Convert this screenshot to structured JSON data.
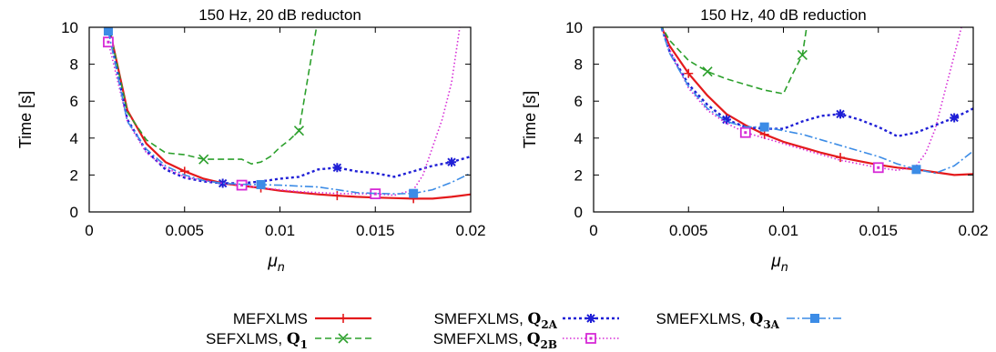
{
  "colors": {
    "MEFXLMS": "#e41a1c",
    "SEFXLMS_Q1": "#2ca02c",
    "SMEFXLMS_Q2A": "#1f1fd6",
    "SMEFXLMS_Q2B": "#d62ad6",
    "SMEFXLMS_Q3A": "#3c8ce6",
    "axis": "#000000"
  },
  "chart_data": [
    {
      "type": "line",
      "title": "150 Hz, 20 dB reducton",
      "xlabel": "μ",
      "xlabel_sub": "n",
      "ylabel": "Time [s]",
      "xlim": [
        0,
        0.02
      ],
      "ylim": [
        0,
        10
      ],
      "xticks": [
        0,
        0.005,
        0.01,
        0.015,
        0.02
      ],
      "xtick_labels": [
        "0",
        "0.005",
        "0.01",
        "0.015",
        "0.02"
      ],
      "yticks": [
        0,
        2,
        4,
        6,
        8,
        10
      ],
      "ytick_labels": [
        "0",
        "2",
        "4",
        "6",
        "8",
        "10"
      ],
      "series": [
        {
          "key": "MEFXLMS",
          "x": [
            0.001,
            0.002,
            0.003,
            0.004,
            0.005,
            0.006,
            0.007,
            0.008,
            0.009,
            0.01,
            0.011,
            0.012,
            0.013,
            0.014,
            0.015,
            0.016,
            0.017,
            0.018,
            0.019,
            0.02
          ],
          "y": [
            10.2,
            5.5,
            3.7,
            2.7,
            2.2,
            1.8,
            1.55,
            1.42,
            1.3,
            1.15,
            1.05,
            0.95,
            0.88,
            0.82,
            0.78,
            0.75,
            0.72,
            0.72,
            0.82,
            0.95
          ],
          "markers": [
            0.005,
            0.009,
            0.013,
            0.017
          ]
        },
        {
          "key": "SEFXLMS_Q1",
          "x": [
            0.001,
            0.002,
            0.003,
            0.004,
            0.005,
            0.006,
            0.007,
            0.008,
            0.0085,
            0.009,
            0.0095,
            0.01,
            0.0105,
            0.011,
            0.0115,
            0.012
          ],
          "y": [
            10.2,
            5.4,
            3.9,
            3.2,
            3.1,
            2.85,
            2.85,
            2.85,
            2.6,
            2.7,
            3.0,
            3.5,
            3.9,
            4.4,
            7.5,
            10.5
          ],
          "markers": [
            0.006,
            0.011
          ]
        },
        {
          "key": "SMEFXLMS_Q2A",
          "x": [
            0.001,
            0.002,
            0.003,
            0.004,
            0.005,
            0.006,
            0.007,
            0.008,
            0.009,
            0.01,
            0.011,
            0.012,
            0.013,
            0.014,
            0.015,
            0.016,
            0.017,
            0.018,
            0.019,
            0.02
          ],
          "y": [
            9.9,
            5.0,
            3.3,
            2.3,
            1.85,
            1.65,
            1.55,
            1.55,
            1.65,
            1.8,
            1.9,
            2.3,
            2.4,
            2.2,
            2.1,
            1.9,
            2.2,
            2.5,
            2.7,
            3.0
          ],
          "markers": [
            0.007,
            0.013,
            0.019
          ]
        },
        {
          "key": "SMEFXLMS_Q2B",
          "x": [
            0.001,
            0.002,
            0.003,
            0.004,
            0.005,
            0.006,
            0.007,
            0.008,
            0.009,
            0.01,
            0.011,
            0.012,
            0.013,
            0.014,
            0.015,
            0.016,
            0.017,
            0.0175,
            0.018,
            0.0185,
            0.019,
            0.0195
          ],
          "y": [
            9.2,
            4.9,
            3.2,
            2.4,
            1.9,
            1.7,
            1.55,
            1.45,
            1.3,
            1.2,
            1.1,
            1.05,
            1.0,
            0.98,
            0.98,
            0.9,
            1.2,
            2.0,
            3.5,
            5.0,
            7.0,
            10.5
          ],
          "markers": [
            0.001,
            0.008,
            0.015
          ]
        },
        {
          "key": "SMEFXLMS_Q3A",
          "x": [
            0.001,
            0.002,
            0.003,
            0.004,
            0.005,
            0.006,
            0.007,
            0.008,
            0.009,
            0.01,
            0.011,
            0.012,
            0.013,
            0.014,
            0.015,
            0.016,
            0.017,
            0.018,
            0.019,
            0.02
          ],
          "y": [
            9.8,
            4.9,
            3.4,
            2.5,
            2.0,
            1.7,
            1.55,
            1.5,
            1.48,
            1.45,
            1.4,
            1.35,
            1.2,
            1.05,
            1.0,
            0.98,
            1.0,
            1.2,
            1.6,
            2.1
          ],
          "markers": [
            0.001,
            0.009,
            0.017
          ]
        }
      ]
    },
    {
      "type": "line",
      "title": "150 Hz, 40 dB reduction",
      "xlabel": "μ",
      "xlabel_sub": "n",
      "ylabel": "Time [s]",
      "xlim": [
        0,
        0.02
      ],
      "ylim": [
        0,
        10
      ],
      "xticks": [
        0,
        0.005,
        0.01,
        0.015,
        0.02
      ],
      "xtick_labels": [
        "0",
        "0.005",
        "0.01",
        "0.015",
        "0.02"
      ],
      "yticks": [
        0,
        2,
        4,
        6,
        8,
        10
      ],
      "ytick_labels": [
        "0",
        "2",
        "4",
        "6",
        "8",
        "10"
      ],
      "series": [
        {
          "key": "MEFXLMS",
          "x": [
            0.0035,
            0.004,
            0.005,
            0.006,
            0.007,
            0.008,
            0.009,
            0.01,
            0.011,
            0.012,
            0.013,
            0.014,
            0.015,
            0.016,
            0.017,
            0.018,
            0.019,
            0.02
          ],
          "y": [
            10.2,
            9.0,
            7.5,
            6.3,
            5.3,
            4.7,
            4.2,
            3.8,
            3.5,
            3.2,
            2.95,
            2.75,
            2.55,
            2.4,
            2.3,
            2.15,
            2.0,
            2.05
          ],
          "markers": [
            0.005,
            0.009,
            0.013
          ]
        },
        {
          "key": "SEFXLMS_Q1",
          "x": [
            0.0035,
            0.004,
            0.005,
            0.006,
            0.007,
            0.008,
            0.009,
            0.01,
            0.0105,
            0.011,
            0.0113
          ],
          "y": [
            10.2,
            9.3,
            8.2,
            7.6,
            7.2,
            6.9,
            6.6,
            6.4,
            7.5,
            8.5,
            10.5
          ],
          "markers": [
            0.006,
            0.011
          ]
        },
        {
          "key": "SMEFXLMS_Q2A",
          "x": [
            0.0035,
            0.004,
            0.005,
            0.006,
            0.007,
            0.008,
            0.009,
            0.01,
            0.011,
            0.012,
            0.013,
            0.014,
            0.015,
            0.016,
            0.017,
            0.018,
            0.019,
            0.02
          ],
          "y": [
            10.2,
            8.7,
            6.9,
            5.8,
            5.0,
            4.6,
            4.5,
            4.5,
            4.9,
            5.2,
            5.3,
            5.0,
            4.6,
            4.1,
            4.3,
            4.7,
            5.1,
            5.6
          ],
          "markers": [
            0.007,
            0.013,
            0.019
          ]
        },
        {
          "key": "SMEFXLMS_Q2B",
          "x": [
            0.0035,
            0.004,
            0.005,
            0.006,
            0.007,
            0.008,
            0.009,
            0.01,
            0.011,
            0.012,
            0.013,
            0.014,
            0.015,
            0.016,
            0.017,
            0.0175,
            0.018,
            0.0185,
            0.019,
            0.0195
          ],
          "y": [
            10.2,
            8.8,
            6.7,
            5.5,
            4.8,
            4.3,
            4.0,
            3.7,
            3.4,
            3.1,
            2.8,
            2.6,
            2.4,
            2.25,
            2.5,
            3.2,
            4.5,
            6.5,
            8.5,
            10.5
          ],
          "markers": [
            0.008,
            0.015
          ]
        },
        {
          "key": "SMEFXLMS_Q3A",
          "x": [
            0.0035,
            0.004,
            0.005,
            0.006,
            0.007,
            0.008,
            0.009,
            0.01,
            0.011,
            0.012,
            0.013,
            0.014,
            0.015,
            0.016,
            0.017,
            0.018,
            0.019,
            0.02
          ],
          "y": [
            10.2,
            8.6,
            6.8,
            5.6,
            4.9,
            4.6,
            4.6,
            4.4,
            4.2,
            3.9,
            3.6,
            3.3,
            3.0,
            2.6,
            2.3,
            2.1,
            2.5,
            3.3
          ],
          "markers": [
            0.009,
            0.017
          ]
        }
      ]
    }
  ],
  "legend": [
    {
      "key": "MEFXLMS",
      "label": "MEFXLMS",
      "sub": "",
      "col": 0,
      "row": 0
    },
    {
      "key": "SEFXLMS_Q1",
      "label": "SEFXLMS, Q",
      "sub": "1",
      "col": 0,
      "row": 1
    },
    {
      "key": "SMEFXLMS_Q2A",
      "label": "SMEFXLMS, Q",
      "sub": "2A",
      "col": 1,
      "row": 0
    },
    {
      "key": "SMEFXLMS_Q2B",
      "label": "SMEFXLMS, Q",
      "sub": "2B",
      "col": 1,
      "row": 1
    },
    {
      "key": "SMEFXLMS_Q3A",
      "label": "SMEFXLMS, Q",
      "sub": "3A",
      "col": 2,
      "row": 0
    }
  ]
}
